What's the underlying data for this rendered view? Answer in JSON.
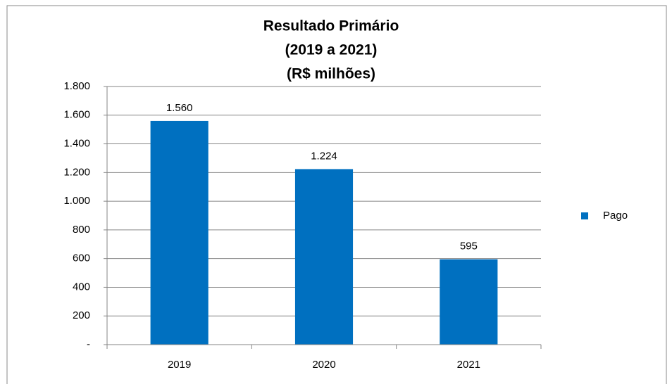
{
  "chart_data": {
    "type": "bar",
    "title": [
      "Resultado Primário",
      "(2019 a 2021)",
      "(R$ milhões)"
    ],
    "categories": [
      "2019",
      "2020",
      "2021"
    ],
    "series": [
      {
        "name": "Pago",
        "color": "#0070c0",
        "values": [
          1560,
          1224,
          595
        ],
        "value_labels": [
          "1.560",
          "1.224",
          "595"
        ]
      }
    ],
    "ylim": [
      0,
      1800
    ],
    "yticks": [
      {
        "value": 0,
        "label": "-"
      },
      200,
      400,
      600,
      800,
      {
        "value": 1000,
        "label": "1.000"
      },
      {
        "value": 1200,
        "label": "1.200"
      },
      {
        "value": 1400,
        "label": "1.400"
      },
      {
        "value": 1600,
        "label": "1.600"
      },
      {
        "value": 1800,
        "label": "1.800"
      }
    ],
    "grid": true,
    "legend": "right"
  }
}
